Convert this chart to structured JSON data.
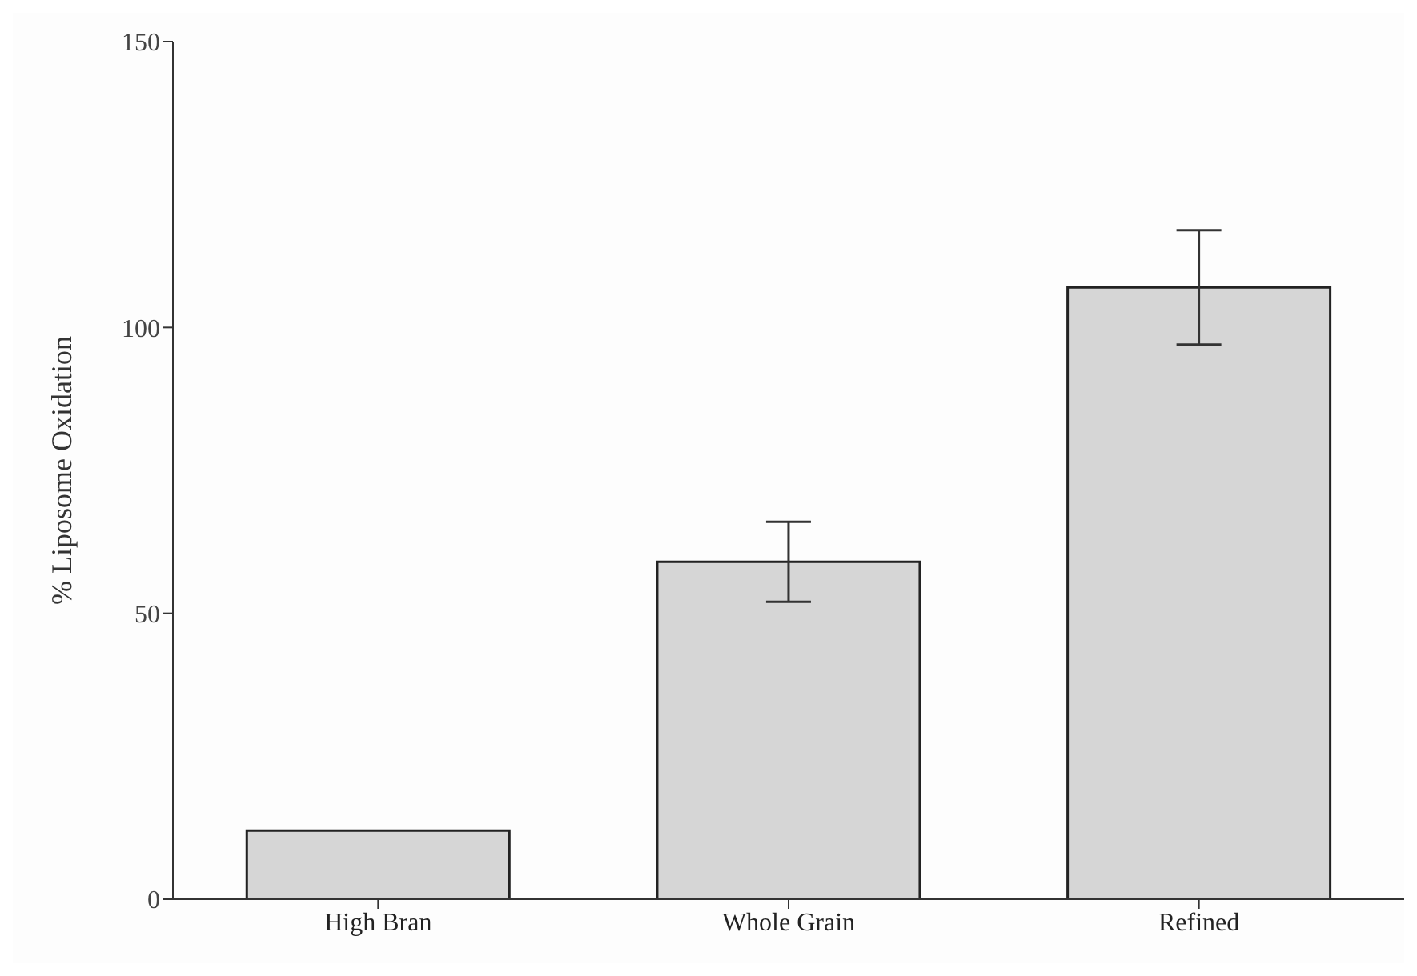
{
  "chart_data": {
    "type": "bar",
    "ylabel": "% Liposome Oxidation",
    "categories": [
      "High Bran",
      "Whole Grain",
      "Refined"
    ],
    "values": [
      12,
      59,
      107
    ],
    "errors": [
      null,
      7,
      10
    ],
    "color": "#d6d6d6",
    "ylim": [
      0,
      150
    ],
    "yticks": [
      0,
      50,
      100,
      150
    ],
    "grid": false,
    "legend": false
  }
}
